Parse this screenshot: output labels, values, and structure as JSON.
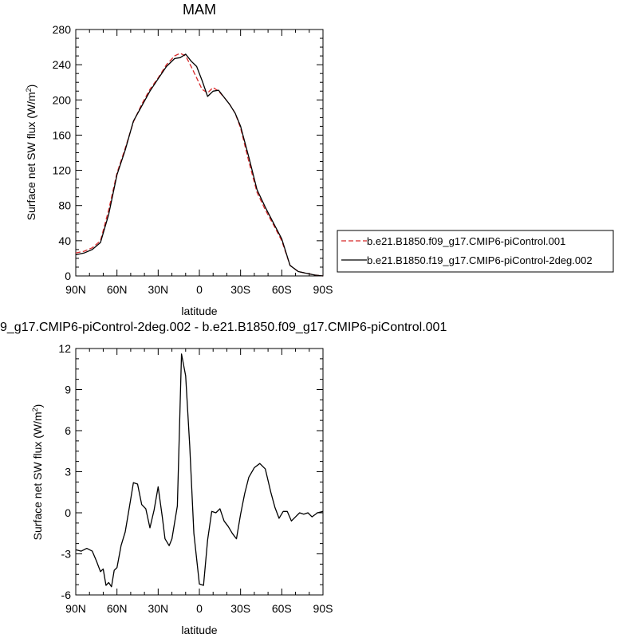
{
  "chart_data": [
    {
      "type": "line",
      "title": "MAM",
      "xlabel": "latitude",
      "ylabel": "Surface net SW flux (W/m²)",
      "ylabel_main": "Surface net SW flux (W/m",
      "ylabel_sup": "2",
      "ylabel_end": ")",
      "x_ticks": [
        90,
        60,
        30,
        0,
        -30,
        -60,
        -90
      ],
      "x_tick_labels": [
        "90N",
        "60N",
        "30N",
        "0",
        "30S",
        "60S",
        "90S"
      ],
      "xlim": [
        90,
        -90
      ],
      "y_ticks": [
        0,
        40,
        80,
        120,
        160,
        200,
        240,
        280
      ],
      "y_tick_labels": [
        "0",
        "40",
        "80",
        "120",
        "160",
        "200",
        "240",
        "280"
      ],
      "ylim": [
        0,
        280
      ],
      "legend_position": "right",
      "series": [
        {
          "name": "b.e21.B1850.f09_g17.CMIP6-piControl.001",
          "color": "#d62728",
          "dash": true,
          "x": [
            90,
            84,
            78,
            72,
            66,
            60,
            54,
            48,
            42,
            36,
            30,
            24,
            18,
            14,
            10,
            6,
            2,
            -2,
            -6,
            -10,
            -14,
            -18,
            -22,
            -26,
            -30,
            -36,
            -42,
            -48,
            -54,
            -60,
            -66,
            -72,
            -78,
            -84,
            -90
          ],
          "y": [
            26,
            28,
            32,
            40,
            75,
            117,
            145,
            175,
            195,
            212,
            225,
            240,
            250,
            253,
            250,
            238,
            225,
            212,
            208,
            214,
            210,
            203,
            195,
            185,
            168,
            130,
            95,
            75,
            58,
            40,
            12,
            5,
            3,
            1,
            0
          ]
        },
        {
          "name": "b.e21.B1850.f19_g17.CMIP6-piControl-2deg.002",
          "color": "#000000",
          "dash": false,
          "x": [
            90,
            84,
            78,
            72,
            66,
            60,
            54,
            48,
            42,
            36,
            30,
            24,
            18,
            14,
            10,
            6,
            2,
            -2,
            -6,
            -10,
            -14,
            -18,
            -22,
            -26,
            -30,
            -36,
            -42,
            -48,
            -54,
            -60,
            -66,
            -72,
            -78,
            -84,
            -90
          ],
          "y": [
            24,
            26,
            30,
            38,
            70,
            115,
            143,
            176,
            193,
            210,
            224,
            238,
            247,
            248,
            252,
            244,
            238,
            222,
            204,
            210,
            211,
            203,
            195,
            185,
            170,
            135,
            98,
            78,
            60,
            42,
            12,
            5,
            3,
            1,
            0
          ]
        }
      ]
    },
    {
      "type": "line",
      "title": "9_g17.CMIP6-piControl-2deg.002 - b.e21.B1850.f09_g17.CMIP6-piControl.001",
      "xlabel": "latitude",
      "ylabel": "Surface net SW flux (W/m²)",
      "ylabel_main": "Surface net SW flux (W/m",
      "ylabel_sup": "2",
      "ylabel_end": ")",
      "x_ticks": [
        90,
        60,
        30,
        0,
        -30,
        -60,
        -90
      ],
      "x_tick_labels": [
        "90N",
        "60N",
        "30N",
        "0",
        "30S",
        "60S",
        "90S"
      ],
      "xlim": [
        90,
        -90
      ],
      "y_ticks": [
        -6,
        -3,
        0,
        3,
        6,
        9,
        12
      ],
      "y_tick_labels": [
        "-6",
        "-3",
        "0",
        "3",
        "6",
        "9",
        "12"
      ],
      "ylim": [
        -6,
        12
      ],
      "series": [
        {
          "color": "#000000",
          "x": [
            90,
            86,
            82,
            78,
            75,
            72,
            70,
            68,
            66,
            64,
            62,
            60,
            57,
            54,
            51,
            48,
            45,
            42,
            39,
            36,
            33,
            30,
            27,
            25,
            22,
            20,
            16,
            13,
            10,
            7,
            4,
            0,
            -3,
            -6,
            -9,
            -12,
            -15,
            -18,
            -21,
            -24,
            -27,
            -30,
            -33,
            -36,
            -40,
            -44,
            -48,
            -52,
            -55,
            -58,
            -61,
            -64,
            -67,
            -70,
            -73,
            -76,
            -79,
            -82,
            -86,
            -90
          ],
          "y": [
            -2.7,
            -2.8,
            -2.6,
            -2.8,
            -3.5,
            -4.3,
            -4.1,
            -5.3,
            -5.1,
            -5.4,
            -4.2,
            -4.0,
            -2.4,
            -1.4,
            0.4,
            2.2,
            2.1,
            0.6,
            0.3,
            -1.1,
            0.2,
            1.9,
            -0.3,
            -1.9,
            -2.4,
            -1.9,
            0.5,
            11.6,
            10.0,
            4.9,
            -1.5,
            -5.2,
            -5.3,
            -2.0,
            0.1,
            0.0,
            0.3,
            -0.6,
            -1.0,
            -1.5,
            -1.9,
            -0.1,
            1.4,
            2.6,
            3.3,
            3.6,
            3.2,
            1.5,
            0.4,
            -0.4,
            0.1,
            0.1,
            -0.6,
            -0.3,
            0.0,
            -0.1,
            0.0,
            -0.3,
            0.0,
            0.1
          ]
        }
      ]
    }
  ]
}
